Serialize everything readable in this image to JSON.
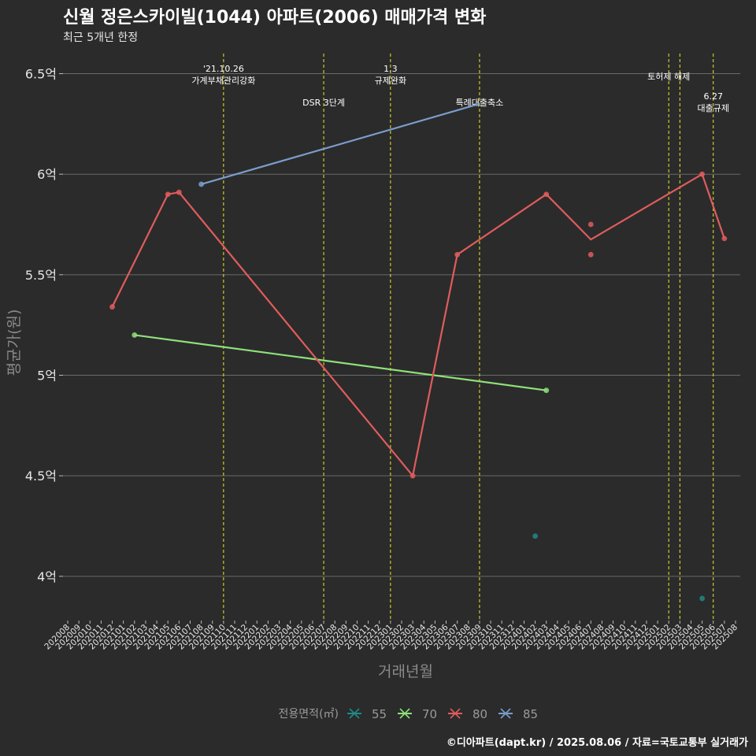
{
  "chart_data": {
    "type": "line",
    "title": "신월 정은스카이빌(1044) 아파트(2006) 매매가격 변화",
    "subtitle": "최근 5개년 한정",
    "xlabel": "거래년월",
    "ylabel": "평균가(원)",
    "ylim": [
      3.78,
      6.6
    ],
    "y_ticks": [
      {
        "v": 4,
        "label": "4억"
      },
      {
        "v": 4.5,
        "label": "4.5억"
      },
      {
        "v": 5,
        "label": "5억"
      },
      {
        "v": 5.5,
        "label": "5.5억"
      },
      {
        "v": 6,
        "label": "6억"
      },
      {
        "v": 6.5,
        "label": "6.5억"
      }
    ],
    "x_ticks": [
      "202008",
      "202009",
      "202010",
      "202011",
      "202012",
      "202101",
      "202102",
      "202103",
      "202104",
      "202105",
      "202106",
      "202107",
      "202108",
      "202109",
      "202110",
      "202111",
      "202112",
      "202201",
      "202202",
      "202203",
      "202204",
      "202205",
      "202206",
      "202207",
      "202208",
      "202209",
      "202210",
      "202211",
      "202212",
      "202301",
      "202302",
      "202303",
      "202304",
      "202305",
      "202306",
      "202307",
      "202308",
      "202309",
      "202310",
      "202311",
      "202312",
      "202401",
      "202402",
      "202403",
      "202404",
      "202405",
      "202406",
      "202407",
      "202408",
      "202409",
      "202410",
      "202411",
      "202412",
      "202501",
      "202502",
      "202503",
      "202504",
      "202505",
      "202506",
      "202507",
      "202508"
    ],
    "series": [
      {
        "name": "55",
        "color": "#1f8a86",
        "line": [],
        "points": [
          {
            "x": "202402",
            "y": 4.2
          },
          {
            "x": "202505",
            "y": 3.89
          }
        ]
      },
      {
        "name": "70",
        "color": "#8fe07a",
        "line": [
          {
            "x": "202102",
            "y": 5.2
          },
          {
            "x": "202403",
            "y": 4.925
          }
        ],
        "points": [
          {
            "x": "202102",
            "y": 5.2
          },
          {
            "x": "202403",
            "y": 4.925
          }
        ]
      },
      {
        "name": "80",
        "color": "#e05c5c",
        "line": [
          {
            "x": "202012",
            "y": 5.34
          },
          {
            "x": "202105",
            "y": 5.9
          },
          {
            "x": "202106",
            "y": 5.91
          },
          {
            "x": "202303",
            "y": 4.5
          },
          {
            "x": "202307",
            "y": 5.6
          },
          {
            "x": "202403",
            "y": 5.9
          },
          {
            "x": "202407",
            "y": 5.675
          },
          {
            "x": "202505",
            "y": 6.0
          },
          {
            "x": "202507",
            "y": 5.68
          }
        ],
        "points": [
          {
            "x": "202012",
            "y": 5.34
          },
          {
            "x": "202105",
            "y": 5.9
          },
          {
            "x": "202106",
            "y": 5.91
          },
          {
            "x": "202303",
            "y": 4.5
          },
          {
            "x": "202307",
            "y": 5.6
          },
          {
            "x": "202403",
            "y": 5.9
          },
          {
            "x": "202407",
            "y": 5.75
          },
          {
            "x": "202407",
            "y": 5.6
          },
          {
            "x": "202505",
            "y": 6.0
          },
          {
            "x": "202507",
            "y": 5.68
          }
        ]
      },
      {
        "name": "85",
        "color": "#7b9ccc",
        "line": [
          {
            "x": "202108",
            "y": 5.95
          },
          {
            "x": "202309",
            "y": 6.35
          }
        ],
        "points": [
          {
            "x": "202108",
            "y": 5.95
          }
        ]
      }
    ],
    "events": [
      {
        "x": "202110",
        "lines": [
          "'21.10.26",
          "가계부채관리강화"
        ],
        "level": 0
      },
      {
        "x": "202207",
        "lines": [
          "DSR 3단계"
        ],
        "level": 2
      },
      {
        "x": "202301",
        "lines": [
          "1.3",
          "규제완화"
        ],
        "level": 0
      },
      {
        "x": "202309",
        "lines": [
          "특례대출축소"
        ],
        "level": 2
      },
      {
        "x": "202502",
        "lines": [
          "토허제 해제"
        ],
        "level": 1
      },
      {
        "x": "202503",
        "lines": [],
        "level": 1
      },
      {
        "x": "202506",
        "lines": [
          "6.27",
          "대출규제"
        ],
        "level": 3
      }
    ],
    "legend": {
      "title": "전용면적(㎡)",
      "position": "bottom"
    }
  },
  "footer": {
    "credit": "©디아파트(dapt.kr) / 2025.08.06 / 자료=국토교통부 실거래가"
  }
}
